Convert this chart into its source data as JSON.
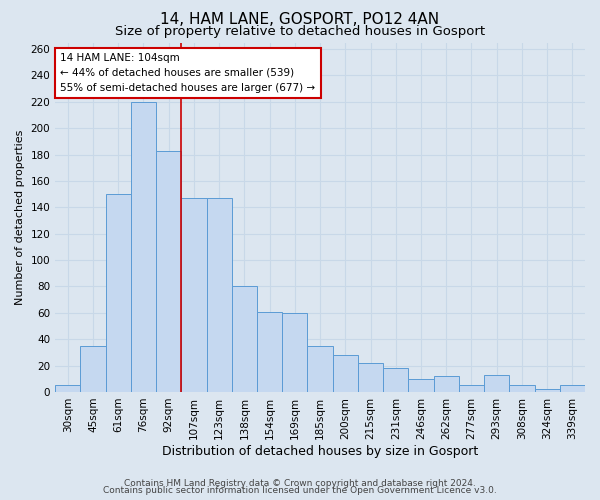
{
  "title1": "14, HAM LANE, GOSPORT, PO12 4AN",
  "title2": "Size of property relative to detached houses in Gosport",
  "xlabel": "Distribution of detached houses by size in Gosport",
  "ylabel": "Number of detached properties",
  "categories": [
    "30sqm",
    "45sqm",
    "61sqm",
    "76sqm",
    "92sqm",
    "107sqm",
    "123sqm",
    "138sqm",
    "154sqm",
    "169sqm",
    "185sqm",
    "200sqm",
    "215sqm",
    "231sqm",
    "246sqm",
    "262sqm",
    "277sqm",
    "293sqm",
    "308sqm",
    "324sqm",
    "339sqm"
  ],
  "values": [
    5,
    35,
    150,
    220,
    183,
    147,
    147,
    80,
    61,
    60,
    35,
    28,
    22,
    18,
    10,
    12,
    5,
    13,
    5,
    2,
    5
  ],
  "bar_color": "#c5d8f0",
  "bar_edge_color": "#5b9bd5",
  "red_line_x": 4.5,
  "annotation_line1": "14 HAM LANE: 104sqm",
  "annotation_line2": "← 44% of detached houses are smaller (539)",
  "annotation_line3": "55% of semi-detached houses are larger (677) →",
  "annotation_box_color": "#ffffff",
  "annotation_box_edge": "#cc0000",
  "red_line_color": "#cc0000",
  "grid_color": "#c8d8e8",
  "bg_color": "#dce6f0",
  "ylim": [
    0,
    265
  ],
  "yticks": [
    0,
    20,
    40,
    60,
    80,
    100,
    120,
    140,
    160,
    180,
    200,
    220,
    240,
    260
  ],
  "footer1": "Contains HM Land Registry data © Crown copyright and database right 2024.",
  "footer2": "Contains public sector information licensed under the Open Government Licence v3.0.",
  "title1_fontsize": 11,
  "title2_fontsize": 9.5,
  "xlabel_fontsize": 9,
  "ylabel_fontsize": 8,
  "annot_fontsize": 7.5,
  "tick_fontsize": 7.5,
  "footer_fontsize": 6.5
}
